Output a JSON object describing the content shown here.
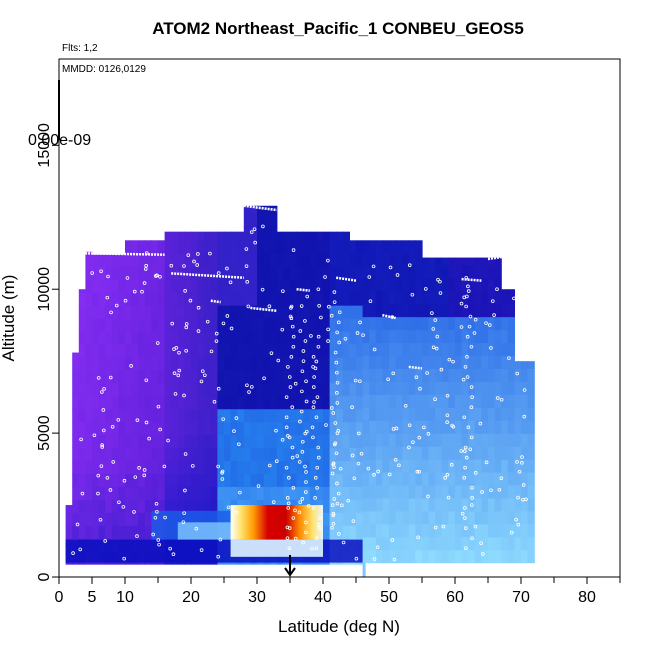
{
  "chart_data": {
    "type": "heatmap",
    "title": "ATOM2 Northeast_Pacific_1 CONBEU_GEOS5",
    "flights_note": "Flts: 1,2",
    "dates_note": "MMDD: 0126,0129",
    "colorbar_label": "0.00e-09",
    "xlabel": "Latitude (deg N)",
    "ylabel": "Altitude (m)",
    "xlim": [
      0,
      85
    ],
    "ylim": [
      0,
      18000
    ],
    "x_ticks_major": [
      0,
      5,
      10,
      20,
      30,
      40,
      50,
      60,
      70,
      80
    ],
    "x_ticks_minor": [
      15,
      25,
      35,
      45,
      55,
      65,
      75,
      85
    ],
    "y_ticks": [
      0,
      5000,
      10000,
      15000
    ],
    "marker_latitude": 35,
    "colors": {
      "low_purple": "#7b2ff0",
      "mid_blue": "#1e3cd8",
      "deep_blue": "#0a0ab0",
      "cyan": "#27b4f7",
      "light_cyan": "#8fdcff",
      "white": "#ffffff",
      "yellow": "#ffd400",
      "orange": "#ff8c00",
      "red": "#d70000",
      "flight_track": "#ffffff"
    },
    "regions": [
      {
        "name": "tropical-purple",
        "lat": [
          1,
          24
        ],
        "alt": [
          500,
          11300
        ],
        "level": "low"
      },
      {
        "name": "midlat-blue",
        "lat": [
          16,
          41
        ],
        "alt": [
          500,
          12000
        ],
        "level": "low-mid"
      },
      {
        "name": "northern-cyan",
        "lat": [
          41,
          71
        ],
        "alt": [
          500,
          9000
        ],
        "level": "mid"
      },
      {
        "name": "plume-hotspot",
        "lat": [
          27,
          40
        ],
        "alt": [
          1300,
          2500
        ],
        "level": "high"
      }
    ]
  }
}
